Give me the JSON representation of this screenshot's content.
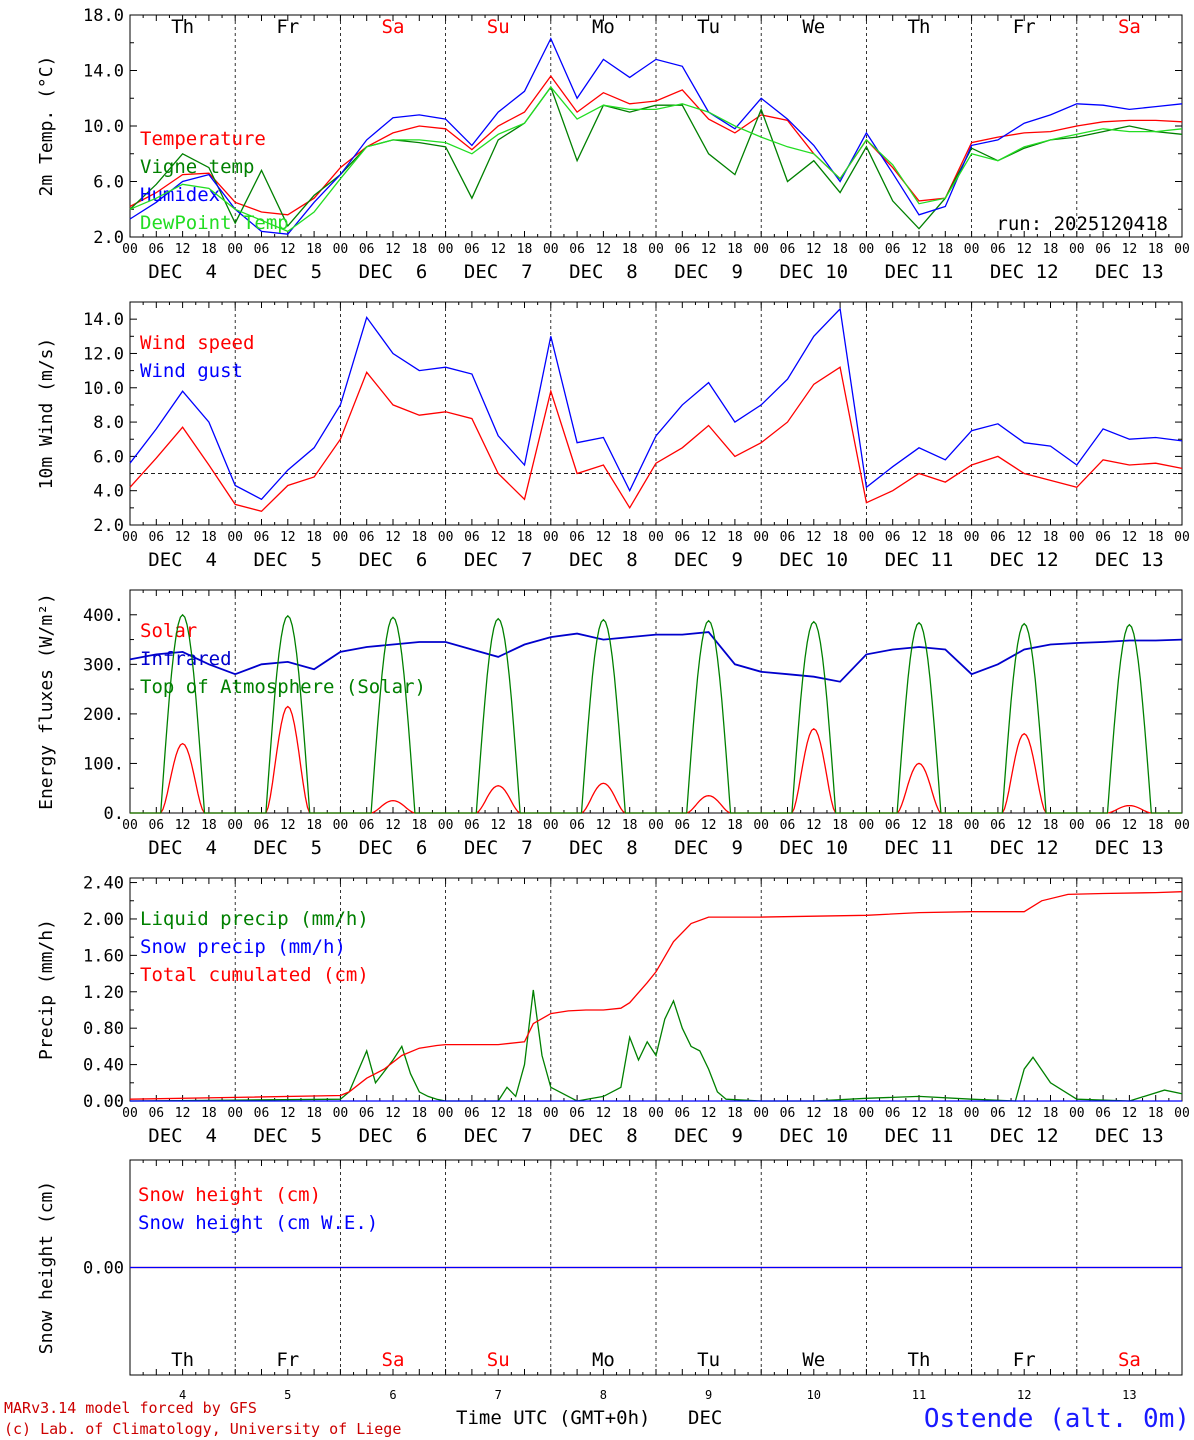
{
  "colors": {
    "red": "#ff0000",
    "blue": "#0000ff",
    "green": "#008000",
    "lightgreen": "#22dd22",
    "darkblue": "#0000cc",
    "weekend": "#ff0000",
    "weekday": "#000000"
  },
  "run_label": "run: 2025120418",
  "hour_ticks": [
    "00",
    "06",
    "12",
    "18"
  ],
  "final_tick": "00",
  "dates": [
    "DEC  4",
    "DEC  5",
    "DEC  6",
    "DEC  7",
    "DEC  8",
    "DEC  9",
    "DEC 10",
    "DEC 11",
    "DEC 12",
    "DEC 13"
  ],
  "day_names": [
    "Th",
    "Fr",
    "Sa",
    "Su",
    "Mo",
    "Tu",
    "We",
    "Th",
    "Fr",
    "Sa"
  ],
  "day_weekend": [
    false,
    false,
    true,
    true,
    false,
    false,
    false,
    false,
    false,
    true
  ],
  "day_numbers": [
    "4",
    "5",
    "6",
    "7",
    "8",
    "9",
    "10",
    "11",
    "12",
    "13"
  ],
  "footer": {
    "line1": "MARv3.14 model forced by GFS",
    "line2": "(c) Lab. of Climatology, University of Liege",
    "xlabel": "Time UTC (GMT+0h)",
    "month": "DEC",
    "station": "Ostende (alt. 0m)"
  },
  "chart_data": [
    {
      "type": "line",
      "id": "temp",
      "ylabel": "2m Temp. (°C)",
      "ylim": [
        2.0,
        18.0
      ],
      "yticks": [
        "2.0",
        "6.0",
        "10.0",
        "14.0",
        "18.0"
      ],
      "ytick_values": [
        2,
        6,
        10,
        14,
        18
      ],
      "x_unit": "hours since DEC 4 00 UTC",
      "series": [
        {
          "name": "Temperature",
          "color": "#ff0000",
          "x": [
            0,
            6,
            12,
            18,
            24,
            30,
            36,
            42,
            48,
            54,
            60,
            66,
            72,
            78,
            84,
            90,
            96,
            102,
            108,
            114,
            120,
            126,
            132,
            138,
            144,
            150,
            156,
            162,
            168,
            174,
            180,
            186,
            192,
            198,
            204,
            210,
            216,
            222,
            228,
            234,
            240
          ],
          "y": [
            4.2,
            5.2,
            6.5,
            6.6,
            4.5,
            3.8,
            3.6,
            4.8,
            7.0,
            8.5,
            9.5,
            10.0,
            9.8,
            8.3,
            10.0,
            11.0,
            13.6,
            11.0,
            12.4,
            11.6,
            11.8,
            12.6,
            10.5,
            9.5,
            10.8,
            10.4,
            8.0,
            6.2,
            9.0,
            7.0,
            4.6,
            4.8,
            8.8,
            9.2,
            9.5,
            9.6,
            10.0,
            10.3,
            10.4,
            10.4,
            10.3
          ]
        },
        {
          "name": "Vigne temp",
          "color": "#008000",
          "x": [
            0,
            6,
            12,
            18,
            24,
            30,
            36,
            42,
            48,
            54,
            60,
            66,
            72,
            78,
            84,
            90,
            96,
            102,
            108,
            114,
            120,
            126,
            132,
            138,
            144,
            150,
            156,
            162,
            168,
            174,
            180,
            186,
            192,
            198,
            204,
            210,
            216,
            222,
            228,
            234,
            240
          ],
          "y": [
            4.0,
            5.8,
            8.0,
            7.0,
            3.0,
            6.8,
            2.8,
            5.0,
            6.5,
            8.5,
            9.0,
            8.8,
            8.5,
            4.8,
            9.0,
            10.2,
            12.8,
            7.5,
            11.5,
            11.0,
            11.5,
            11.5,
            8.0,
            6.5,
            11.2,
            6.0,
            7.5,
            5.2,
            8.5,
            4.6,
            2.6,
            4.8,
            8.4,
            7.5,
            8.4,
            9.0,
            9.2,
            9.6,
            10.0,
            9.6,
            9.4
          ]
        },
        {
          "name": "Humidex",
          "color": "#0000ff",
          "x": [
            0,
            6,
            12,
            18,
            24,
            30,
            36,
            42,
            48,
            54,
            60,
            66,
            72,
            78,
            84,
            90,
            96,
            102,
            108,
            114,
            120,
            126,
            132,
            138,
            144,
            150,
            156,
            162,
            168,
            174,
            180,
            186,
            192,
            198,
            204,
            210,
            216,
            222,
            228,
            234,
            240
          ],
          "y": [
            3.3,
            4.5,
            6.0,
            6.5,
            4.0,
            2.4,
            2.2,
            4.5,
            6.5,
            9.0,
            10.6,
            10.8,
            10.5,
            8.6,
            11.0,
            12.5,
            16.3,
            12.0,
            14.8,
            13.5,
            14.8,
            14.3,
            11.0,
            9.8,
            12.0,
            10.5,
            8.6,
            6.0,
            9.5,
            6.6,
            3.6,
            4.2,
            8.6,
            9.0,
            10.2,
            10.8,
            11.6,
            11.5,
            11.2,
            11.4,
            11.6
          ]
        },
        {
          "name": "DewPoint Temp",
          "color": "#22dd22",
          "x": [
            0,
            6,
            12,
            18,
            24,
            30,
            36,
            42,
            48,
            54,
            60,
            66,
            72,
            78,
            84,
            90,
            96,
            102,
            108,
            114,
            120,
            126,
            132,
            138,
            144,
            150,
            156,
            162,
            168,
            174,
            180,
            186,
            192,
            198,
            204,
            210,
            216,
            222,
            228,
            234,
            240
          ],
          "y": [
            4.0,
            4.8,
            5.8,
            5.5,
            4.0,
            3.2,
            2.4,
            3.8,
            6.2,
            8.5,
            9.0,
            9.0,
            8.8,
            8.0,
            9.4,
            10.2,
            12.8,
            10.5,
            11.5,
            11.2,
            11.2,
            11.6,
            11.0,
            10.0,
            9.2,
            8.5,
            8.0,
            6.2,
            9.0,
            7.2,
            4.4,
            4.8,
            8.0,
            7.5,
            8.5,
            9.0,
            9.4,
            9.8,
            9.6,
            9.6,
            9.8
          ]
        }
      ]
    },
    {
      "type": "line",
      "id": "wind",
      "ylabel": "10m Wind (m/s)",
      "ylim": [
        2.0,
        15.0
      ],
      "yticks": [
        "2.0",
        "4.0",
        "6.0",
        "8.0",
        "10.0",
        "12.0",
        "14.0"
      ],
      "ytick_values": [
        2,
        4,
        6,
        8,
        10,
        12,
        14
      ],
      "reference_line": 5.0,
      "series": [
        {
          "name": "Wind speed",
          "color": "#ff0000",
          "x": [
            0,
            6,
            12,
            18,
            24,
            30,
            36,
            42,
            48,
            54,
            60,
            66,
            72,
            78,
            84,
            90,
            96,
            102,
            108,
            114,
            120,
            126,
            132,
            138,
            144,
            150,
            156,
            162,
            168,
            174,
            180,
            186,
            192,
            198,
            204,
            210,
            216,
            222,
            228,
            234,
            240
          ],
          "y": [
            4.2,
            5.9,
            7.7,
            5.5,
            3.2,
            2.8,
            4.3,
            4.8,
            7.0,
            10.9,
            9.0,
            8.4,
            8.6,
            8.2,
            5.0,
            3.5,
            9.8,
            5.0,
            5.5,
            3.0,
            5.6,
            6.5,
            7.8,
            6.0,
            6.8,
            8.0,
            10.2,
            11.2,
            3.3,
            4.0,
            5.0,
            4.5,
            5.5,
            6.0,
            5.0,
            4.6,
            4.2,
            5.8,
            5.5,
            5.6,
            5.3
          ]
        },
        {
          "name": "Wind gust",
          "color": "#0000ff",
          "x": [
            0,
            6,
            12,
            18,
            24,
            30,
            36,
            42,
            48,
            54,
            60,
            66,
            72,
            78,
            84,
            90,
            96,
            102,
            108,
            114,
            120,
            126,
            132,
            138,
            144,
            150,
            156,
            162,
            168,
            174,
            180,
            186,
            192,
            198,
            204,
            210,
            216,
            222,
            228,
            234,
            240
          ],
          "y": [
            5.6,
            7.6,
            9.8,
            8.0,
            4.3,
            3.5,
            5.2,
            6.5,
            9.0,
            14.1,
            12.0,
            11.0,
            11.2,
            10.8,
            7.2,
            5.5,
            13.0,
            6.8,
            7.1,
            4.0,
            7.2,
            9.0,
            10.3,
            8.0,
            9.0,
            10.5,
            13.0,
            14.6,
            4.2,
            5.4,
            6.5,
            5.8,
            7.5,
            7.9,
            6.8,
            6.6,
            5.5,
            7.6,
            7.0,
            7.1,
            6.9
          ]
        }
      ]
    },
    {
      "type": "line",
      "id": "energy",
      "ylabel": "Energy fluxes (W/m²)",
      "ylim": [
        0,
        450
      ],
      "yticks": [
        "0.",
        "100.",
        "200.",
        "300.",
        "400."
      ],
      "ytick_values": [
        0,
        100,
        200,
        300,
        400
      ],
      "series": [
        {
          "name": "Solar",
          "color": "#ff0000",
          "peaks": [
            140,
            215,
            25,
            55,
            60,
            35,
            170,
            100,
            160,
            15
          ]
        },
        {
          "name": "Infrared",
          "color": "#0000cc",
          "x": [
            0,
            6,
            12,
            18,
            24,
            30,
            36,
            42,
            48,
            54,
            60,
            66,
            72,
            78,
            84,
            90,
            96,
            102,
            108,
            114,
            120,
            126,
            132,
            138,
            144,
            150,
            156,
            162,
            168,
            174,
            180,
            186,
            192,
            198,
            204,
            210,
            216,
            222,
            228,
            234,
            240
          ],
          "y": [
            310,
            320,
            325,
            300,
            280,
            300,
            305,
            290,
            325,
            335,
            340,
            345,
            345,
            330,
            315,
            340,
            355,
            362,
            350,
            355,
            360,
            360,
            365,
            300,
            285,
            280,
            275,
            265,
            320,
            330,
            335,
            330,
            280,
            300,
            330,
            340,
            343,
            345,
            348,
            348,
            350
          ]
        },
        {
          "name": "Top of Atmosphere (Solar)",
          "color": "#008000",
          "peaks": [
            400,
            398,
            395,
            392,
            390,
            388,
            386,
            384,
            382,
            380
          ]
        }
      ]
    },
    {
      "type": "line",
      "id": "precip",
      "ylabel": "Precip (mm/h)",
      "ylim": [
        0,
        2.45
      ],
      "yticks": [
        "0.00",
        "0.40",
        "0.80",
        "1.20",
        "1.60",
        "2.00",
        "2.40"
      ],
      "ytick_values": [
        0,
        0.4,
        0.8,
        1.2,
        1.6,
        2.0,
        2.4
      ],
      "series": [
        {
          "name": "Liquid precip (mm/h)",
          "color": "#008000",
          "x": [
            0,
            24,
            48,
            50,
            54,
            56,
            60,
            62,
            64,
            66,
            68,
            70,
            72,
            78,
            84,
            86,
            88,
            90,
            92,
            94,
            96,
            100,
            102,
            108,
            112,
            114,
            116,
            118,
            120,
            122,
            124,
            126,
            128,
            130,
            132,
            134,
            136,
            144,
            156,
            168,
            180,
            192,
            202,
            204,
            206,
            210,
            216,
            228,
            236,
            240
          ],
          "y": [
            0,
            0.01,
            0.02,
            0.1,
            0.55,
            0.2,
            0.45,
            0.6,
            0.3,
            0.1,
            0.05,
            0.02,
            0,
            0,
            0,
            0.15,
            0.05,
            0.4,
            1.22,
            0.5,
            0.15,
            0.05,
            0,
            0.05,
            0.15,
            0.7,
            0.45,
            0.65,
            0.5,
            0.9,
            1.1,
            0.8,
            0.6,
            0.55,
            0.35,
            0.1,
            0.02,
            0,
            0,
            0.03,
            0.05,
            0.02,
            0,
            0.35,
            0.48,
            0.2,
            0.02,
            0,
            0.12,
            0.08
          ]
        },
        {
          "name": "Snow precip (mm/h)",
          "color": "#0000ff",
          "x": [
            0,
            240
          ],
          "y": [
            0,
            0
          ]
        },
        {
          "name": "Total cumulated (cm)",
          "color": "#ff0000",
          "x": [
            0,
            24,
            48,
            50,
            54,
            58,
            62,
            66,
            70,
            72,
            78,
            84,
            90,
            92,
            96,
            100,
            104,
            108,
            112,
            114,
            118,
            120,
            124,
            128,
            132,
            144,
            156,
            168,
            180,
            192,
            196,
            200,
            204,
            208,
            214,
            222,
            234,
            240
          ],
          "y": [
            0.02,
            0.04,
            0.06,
            0.1,
            0.25,
            0.35,
            0.5,
            0.58,
            0.61,
            0.62,
            0.62,
            0.62,
            0.65,
            0.85,
            0.96,
            0.99,
            1.0,
            1.0,
            1.02,
            1.08,
            1.3,
            1.42,
            1.75,
            1.95,
            2.02,
            2.02,
            2.03,
            2.04,
            2.07,
            2.08,
            2.08,
            2.08,
            2.08,
            2.2,
            2.27,
            2.28,
            2.29,
            2.3
          ]
        }
      ]
    },
    {
      "type": "line",
      "id": "snow",
      "ylabel": "Snow height (cm)",
      "ylim": [
        -1,
        1
      ],
      "yticks": [
        "0.00"
      ],
      "ytick_values": [
        0
      ],
      "series": [
        {
          "name": "Snow height (cm)",
          "color": "#ff0000",
          "x": [
            0,
            240
          ],
          "y": [
            0,
            0
          ]
        },
        {
          "name": "Snow height (cm W.E.)",
          "color": "#0000ff",
          "x": [
            0,
            240
          ],
          "y": [
            0,
            0
          ]
        }
      ]
    }
  ]
}
